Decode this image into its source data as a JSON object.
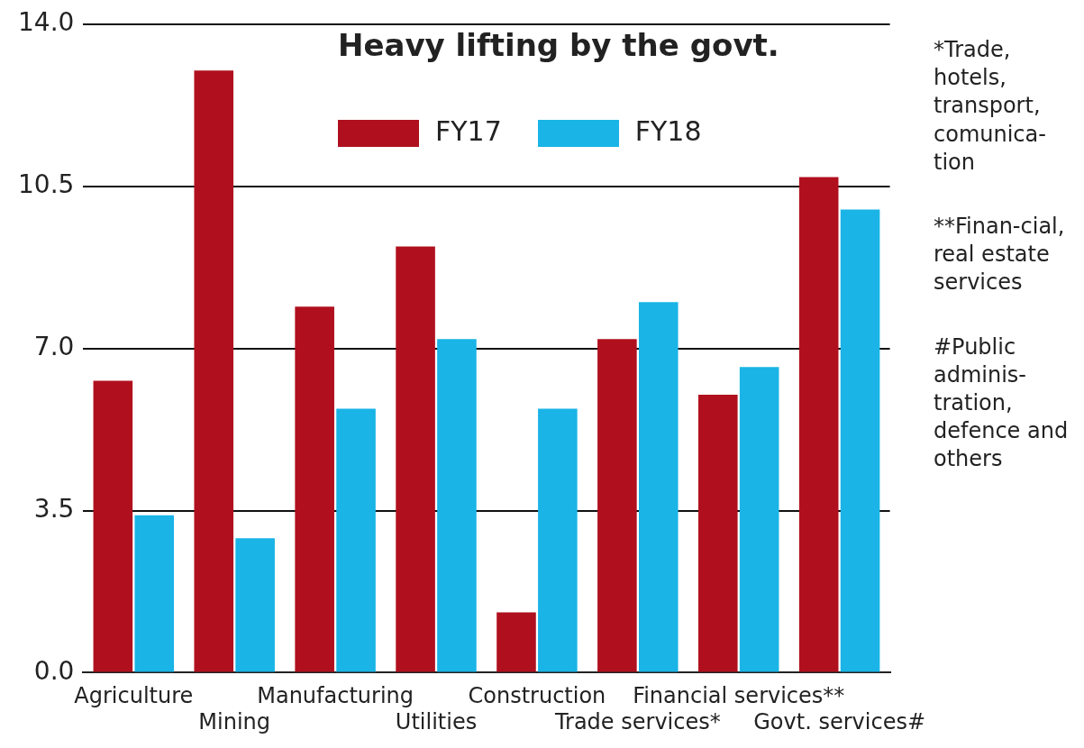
{
  "chart_data": {
    "type": "bar",
    "title": "Heavy lifting by the govt.",
    "categories": [
      "Agriculture",
      "Mining",
      "Manufacturing",
      "Utilities",
      "Construction",
      "Trade services*",
      "Financial services**",
      "Govt. services#"
    ],
    "series": [
      {
        "name": "FY17",
        "color": "#b0101e",
        "values": [
          6.3,
          13.0,
          7.9,
          9.2,
          1.3,
          7.2,
          6.0,
          10.7
        ]
      },
      {
        "name": "FY18",
        "color": "#1ab4e6",
        "values": [
          3.4,
          2.9,
          5.7,
          7.2,
          5.7,
          8.0,
          6.6,
          10.0
        ]
      }
    ],
    "ylim": [
      0,
      14
    ],
    "yticks": [
      {
        "value": 0,
        "label": "0.0"
      },
      {
        "value": 3.5,
        "label": "3.5"
      },
      {
        "value": 7,
        "label": "7.0"
      },
      {
        "value": 10.5,
        "label": "10.5"
      },
      {
        "value": 14,
        "label": "14.0"
      }
    ],
    "grid": "y",
    "legend": "top right",
    "annotations": [
      "*Trade, hotels, transport, comunica-tion",
      "**Finan-cial, real estate services",
      "#Public adminis-tration, defence and others"
    ]
  }
}
